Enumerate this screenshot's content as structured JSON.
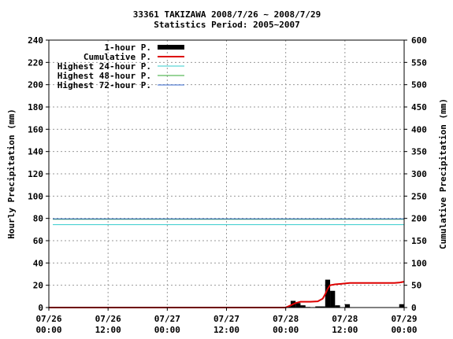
{
  "chart_data": {
    "type": "bar",
    "title_line1": "33361 TAKIZAWA  2008/7/26 ~ 2008/7/29",
    "title_line2": "Statistics Period: 2005~2007",
    "ylabel_left": "Hourly Precipitation (mm)",
    "ylabel_right": "Cumulative Precipitation (mm)",
    "ylim_left": [
      0,
      240
    ],
    "ylim_right": [
      0,
      600
    ],
    "yticks_left": [
      "0",
      "20",
      "40",
      "60",
      "80",
      "100",
      "120",
      "140",
      "160",
      "180",
      "200",
      "220",
      "240"
    ],
    "yticks_right": [
      "0",
      "50",
      "100",
      "150",
      "200",
      "250",
      "300",
      "350",
      "400",
      "450",
      "500",
      "550",
      "600"
    ],
    "xlim_hours": [
      0,
      72
    ],
    "xticks": [
      {
        "line1": "07/26",
        "line2": "00:00"
      },
      {
        "line1": "07/26",
        "line2": "12:00"
      },
      {
        "line1": "07/27",
        "line2": "00:00"
      },
      {
        "line1": "07/27",
        "line2": "12:00"
      },
      {
        "line1": "07/28",
        "line2": "00:00"
      },
      {
        "line1": "07/28",
        "line2": "12:00"
      },
      {
        "line1": "07/29",
        "line2": "00:00"
      }
    ],
    "grid": true,
    "legend_position": "top-left",
    "legend": [
      {
        "label": "1-hour P.",
        "color": "#000000",
        "kind": "bar"
      },
      {
        "label": "Cumulative P.",
        "color": "#dd0000",
        "kind": "line"
      },
      {
        "label": "Highest 24-hour P.",
        "color": "#33cccc",
        "kind": "line"
      },
      {
        "label": "Highest 48-hour P.",
        "color": "#33aa33",
        "kind": "line"
      },
      {
        "label": "Highest 72-hour P.",
        "color": "#3366cc",
        "kind": "line"
      }
    ],
    "hourly": [
      {
        "hour": 48,
        "value": 1
      },
      {
        "hour": 49,
        "value": 6
      },
      {
        "hour": 50,
        "value": 4
      },
      {
        "hour": 51,
        "value": 2
      },
      {
        "hour": 52,
        "value": 0.5
      },
      {
        "hour": 54,
        "value": 1
      },
      {
        "hour": 55,
        "value": 1
      },
      {
        "hour": 56,
        "value": 25
      },
      {
        "hour": 57,
        "value": 15
      },
      {
        "hour": 58,
        "value": 2
      },
      {
        "hour": 60,
        "value": 3
      },
      {
        "hour": 71,
        "value": 3
      }
    ],
    "cumulative": [
      {
        "hour": 0,
        "value": 0
      },
      {
        "hour": 48,
        "value": 0
      },
      {
        "hour": 49,
        "value": 5
      },
      {
        "hour": 50,
        "value": 10
      },
      {
        "hour": 51,
        "value": 13
      },
      {
        "hour": 53,
        "value": 13
      },
      {
        "hour": 54.5,
        "value": 14
      },
      {
        "hour": 55.5,
        "value": 20
      },
      {
        "hour": 56,
        "value": 30
      },
      {
        "hour": 56.5,
        "value": 42
      },
      {
        "hour": 57,
        "value": 50
      },
      {
        "hour": 58,
        "value": 52
      },
      {
        "hour": 59,
        "value": 53
      },
      {
        "hour": 60,
        "value": 54
      },
      {
        "hour": 61,
        "value": 55
      },
      {
        "hour": 66,
        "value": 55
      },
      {
        "hour": 70,
        "value": 55
      },
      {
        "hour": 71,
        "value": 56
      },
      {
        "hour": 72,
        "value": 58
      }
    ],
    "highest_24h": 186,
    "highest_48h": 198,
    "highest_72h": 199
  }
}
